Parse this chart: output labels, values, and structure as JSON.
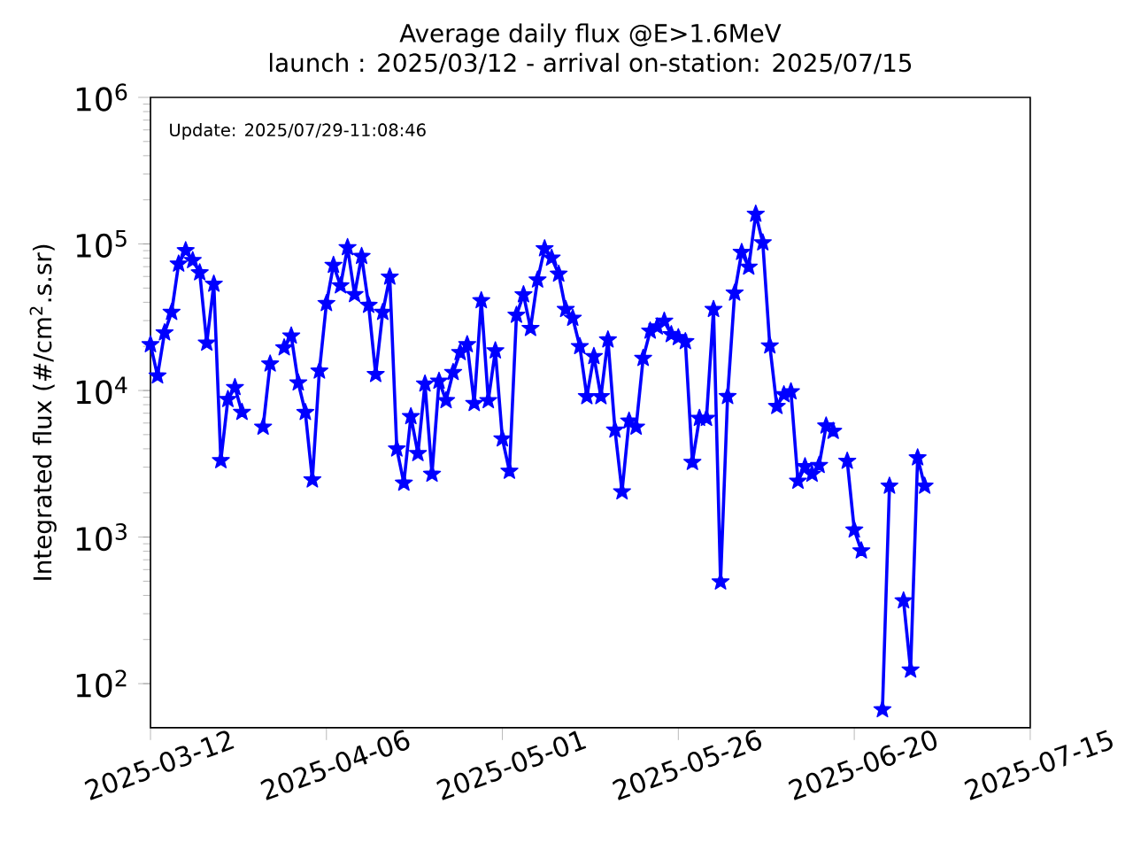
{
  "chart_data": {
    "type": "line",
    "title": "Average daily flux @E>1.6MeV",
    "subtitle": "launch : 2025/03/12 - arrival on-station: 2025/07/15",
    "ylabel": "Integrated flux (#/cm$^{2}$.s.sr)",
    "annotations": [
      "Update: 2025/07/29-11:08:46"
    ],
    "x": [
      "2025-03-12",
      "2025-03-13",
      "2025-03-14",
      "2025-03-15",
      "2025-03-16",
      "2025-03-17",
      "2025-03-18",
      "2025-03-19",
      "2025-03-20",
      "2025-03-21",
      "2025-03-22",
      "2025-03-23",
      "2025-03-24",
      "2025-03-25",
      "2025-03-26",
      "2025-03-27",
      "2025-03-28",
      "2025-03-29",
      "2025-03-30",
      "2025-03-31",
      "2025-04-01",
      "2025-04-02",
      "2025-04-03",
      "2025-04-04",
      "2025-04-05",
      "2025-04-06",
      "2025-04-07",
      "2025-04-08",
      "2025-04-09",
      "2025-04-10",
      "2025-04-11",
      "2025-04-12",
      "2025-04-13",
      "2025-04-14",
      "2025-04-15",
      "2025-04-16",
      "2025-04-17",
      "2025-04-18",
      "2025-04-19",
      "2025-04-20",
      "2025-04-21",
      "2025-04-22",
      "2025-04-23",
      "2025-04-24",
      "2025-04-25",
      "2025-04-26",
      "2025-04-27",
      "2025-04-28",
      "2025-04-29",
      "2025-04-30",
      "2025-05-01",
      "2025-05-02",
      "2025-05-03",
      "2025-05-04",
      "2025-05-05",
      "2025-05-06",
      "2025-05-07",
      "2025-05-08",
      "2025-05-09",
      "2025-05-10",
      "2025-05-11",
      "2025-05-12",
      "2025-05-13",
      "2025-05-14",
      "2025-05-15",
      "2025-05-16",
      "2025-05-17",
      "2025-05-18",
      "2025-05-19",
      "2025-05-20",
      "2025-05-21",
      "2025-05-22",
      "2025-05-23",
      "2025-05-24",
      "2025-05-25",
      "2025-05-26",
      "2025-05-27",
      "2025-05-28",
      "2025-05-29",
      "2025-05-30",
      "2025-05-31",
      "2025-06-01",
      "2025-06-02",
      "2025-06-03",
      "2025-06-04",
      "2025-06-05",
      "2025-06-06",
      "2025-06-07",
      "2025-06-08",
      "2025-06-09",
      "2025-06-10",
      "2025-06-11",
      "2025-06-12",
      "2025-06-13",
      "2025-06-14",
      "2025-06-15",
      "2025-06-16",
      "2025-06-17",
      "2025-06-18",
      "2025-06-19",
      "2025-06-20",
      "2025-06-21",
      "2025-06-22",
      "2025-06-23",
      "2025-06-24",
      "2025-06-25",
      "2025-06-26",
      "2025-06-27",
      "2025-06-28",
      "2025-06-29",
      "2025-06-30"
    ],
    "series": [
      {
        "color": "#0000ff",
        "values": [
          20600,
          12600,
          24800,
          34200,
          73100,
          90200,
          77200,
          63700,
          21100,
          53300,
          3330,
          8710,
          10500,
          7110,
          null,
          null,
          5640,
          15200,
          null,
          19600,
          23600,
          11300,
          7100,
          2460,
          13600,
          39300,
          71600,
          51900,
          94600,
          45200,
          82400,
          38200,
          12900,
          34200,
          59600,
          4000,
          2340,
          6650,
          3720,
          11100,
          2690,
          11600,
          8550,
          13300,
          18200,
          20600,
          8170,
          41100,
          8550,
          18700,
          4690,
          2820,
          32700,
          45100,
          26600,
          56900,
          92900,
          80200,
          62400,
          35800,
          31200,
          20000,
          9100,
          17100,
          9100,
          22200,
          5380,
          2040,
          6200,
          5640,
          16600,
          25500,
          27200,
          29800,
          24100,
          23000,
          21600,
          3240,
          6470,
          6470,
          35800,
          495,
          9120,
          46300,
          87800,
          69700,
          160000,
          102000,
          20200,
          7800,
          9380,
          9820,
          2410,
          3030,
          2690,
          3090,
          5740,
          5280,
          null,
          3300,
          1120,
          807,
          null,
          null,
          66.5,
          2230,
          null,
          368,
          124,
          3480,
          2230
        ]
      }
    ],
    "xlim": [
      "2025-03-12",
      "2025-07-15"
    ],
    "xticks": [
      "2025-03-12",
      "2025-04-06",
      "2025-05-01",
      "2025-05-26",
      "2025-06-20",
      "2025-07-15"
    ],
    "ylim": [
      50,
      1000000
    ],
    "yticks": [
      {
        "value": 100,
        "label": "10$^{2}$"
      },
      {
        "value": 1000,
        "label": "10$^{3}$"
      },
      {
        "value": 10000,
        "label": "10$^{4}$"
      },
      {
        "value": 100000,
        "label": "10$^{5}$"
      },
      {
        "value": 1000000,
        "label": "10$^{6}$"
      }
    ],
    "log": true,
    "grid": false,
    "marker": "star",
    "line_style": "solid"
  }
}
